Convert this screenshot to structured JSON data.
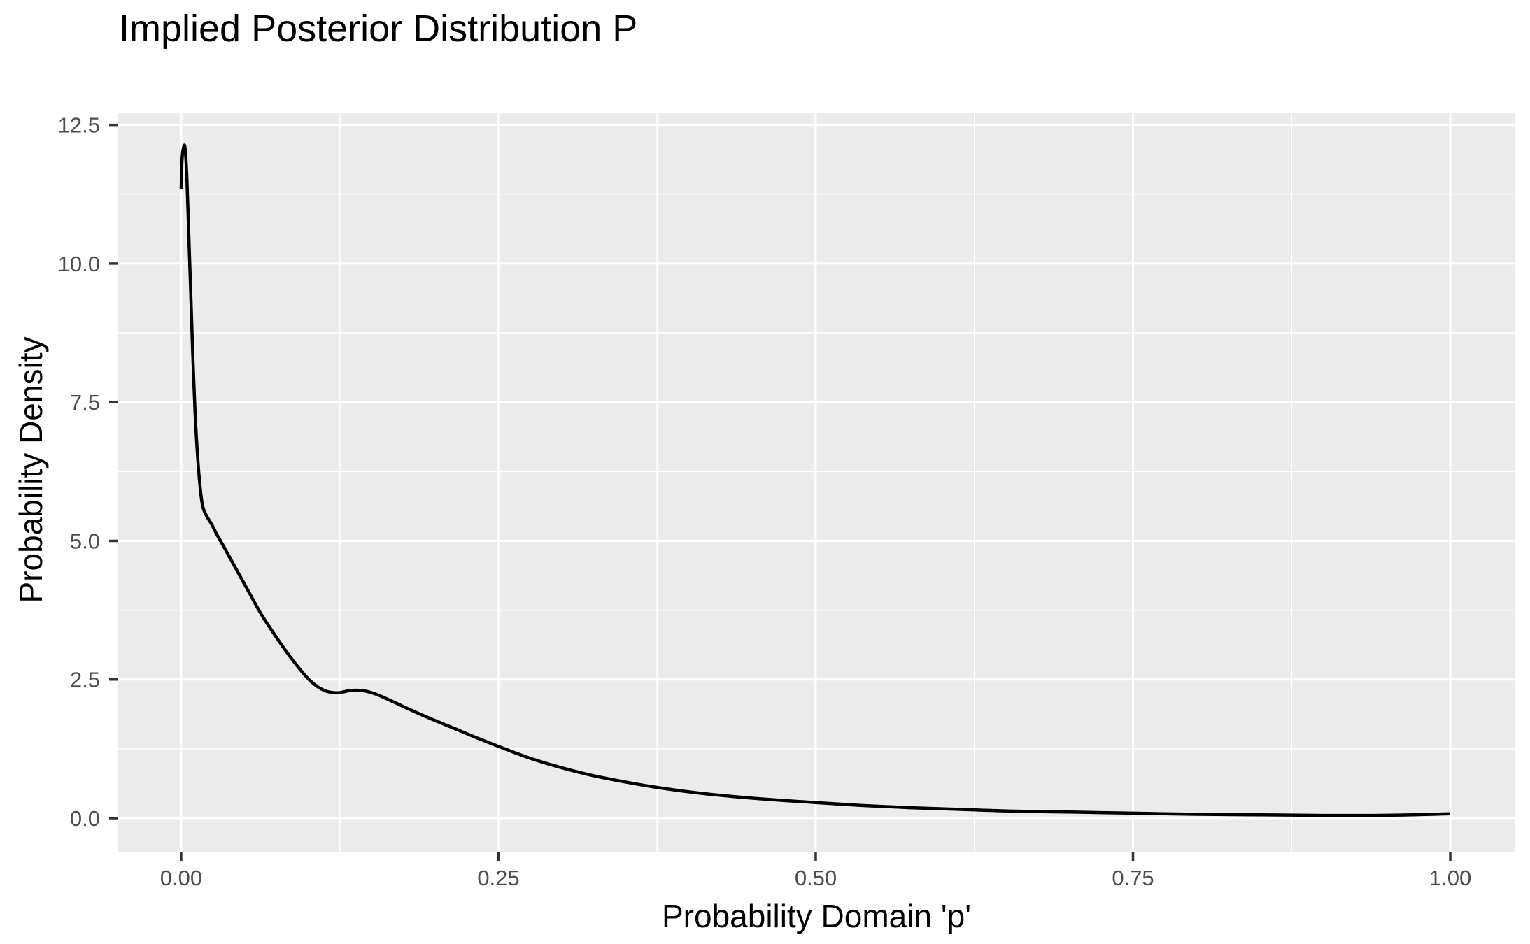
{
  "chart_data": {
    "type": "line",
    "title": "Implied Posterior Distribution P",
    "xlabel": "Probability Domain 'p'",
    "ylabel": "Probability Density",
    "x_ticks": {
      "values": [
        0,
        0.25,
        0.5,
        0.75,
        1.0
      ],
      "labels": [
        "0.00",
        "0.25",
        "0.50",
        "0.75",
        "1.00"
      ]
    },
    "y_ticks": {
      "values": [
        0,
        2.5,
        5.0,
        7.5,
        10.0,
        12.5
      ],
      "labels": [
        "0.0",
        "2.5",
        "5.0",
        "7.5",
        "10.0",
        "12.5"
      ]
    },
    "x_minor_breaks": [
      0.125,
      0.375,
      0.625,
      0.875
    ],
    "y_minor_breaks": [
      1.25,
      3.75,
      6.25,
      8.75,
      11.25
    ],
    "xlim": [
      -0.0496,
      1.0507
    ],
    "ylim": [
      -0.605,
      12.71
    ],
    "grid": "major and minor white gridlines on gray panel, no legend",
    "legend_position": "none",
    "colors": {
      "panel_background": "#EBEBEB",
      "gridline": "#FFFFFF",
      "curve": "#000000",
      "tick_label": "#4D4D4D",
      "tick_mark": "#333333",
      "title_text": "#000000"
    },
    "series": [
      {
        "name": "posterior-density-curve",
        "points": [
          [
            0.0,
            11.35
          ],
          [
            0.0005,
            11.8
          ],
          [
            0.0015,
            12.05
          ],
          [
            0.003,
            12.1
          ],
          [
            0.0045,
            11.55
          ],
          [
            0.006,
            10.5
          ],
          [
            0.0075,
            9.5
          ],
          [
            0.009,
            8.45
          ],
          [
            0.011,
            7.3
          ],
          [
            0.013,
            6.5
          ],
          [
            0.015,
            5.95
          ],
          [
            0.017,
            5.62
          ],
          [
            0.02,
            5.45
          ],
          [
            0.024,
            5.3
          ],
          [
            0.028,
            5.12
          ],
          [
            0.033,
            4.92
          ],
          [
            0.039,
            4.67
          ],
          [
            0.046,
            4.38
          ],
          [
            0.054,
            4.05
          ],
          [
            0.063,
            3.68
          ],
          [
            0.073,
            3.33
          ],
          [
            0.083,
            3.0
          ],
          [
            0.093,
            2.7
          ],
          [
            0.103,
            2.45
          ],
          [
            0.113,
            2.3
          ],
          [
            0.123,
            2.26
          ],
          [
            0.133,
            2.3
          ],
          [
            0.143,
            2.3
          ],
          [
            0.153,
            2.24
          ],
          [
            0.166,
            2.11
          ],
          [
            0.18,
            1.96
          ],
          [
            0.197,
            1.79
          ],
          [
            0.215,
            1.62
          ],
          [
            0.235,
            1.43
          ],
          [
            0.255,
            1.25
          ],
          [
            0.275,
            1.08
          ],
          [
            0.298,
            0.92
          ],
          [
            0.322,
            0.78
          ],
          [
            0.348,
            0.66
          ],
          [
            0.376,
            0.55
          ],
          [
            0.405,
            0.46
          ],
          [
            0.435,
            0.39
          ],
          [
            0.467,
            0.33
          ],
          [
            0.5,
            0.28
          ],
          [
            0.535,
            0.23
          ],
          [
            0.572,
            0.19
          ],
          [
            0.61,
            0.16
          ],
          [
            0.65,
            0.13
          ],
          [
            0.7,
            0.11
          ],
          [
            0.75,
            0.09
          ],
          [
            0.8,
            0.07
          ],
          [
            0.85,
            0.06
          ],
          [
            0.9,
            0.05
          ],
          [
            0.94,
            0.05
          ],
          [
            0.97,
            0.06
          ],
          [
            1.0,
            0.08
          ]
        ]
      }
    ]
  }
}
